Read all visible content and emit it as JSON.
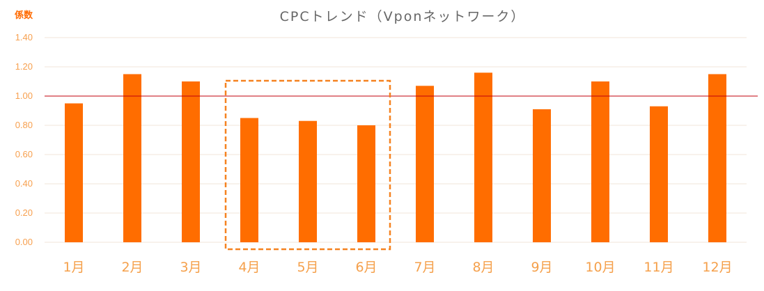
{
  "chart_data": {
    "type": "bar",
    "title": "CPCトレンド（Vponネットワーク）",
    "ylabel": "係数",
    "xlabel": "",
    "categories": [
      "1月",
      "2月",
      "3月",
      "4月",
      "5月",
      "6月",
      "7月",
      "8月",
      "9月",
      "10月",
      "11月",
      "12月"
    ],
    "values": [
      0.95,
      1.15,
      1.1,
      0.85,
      0.83,
      0.8,
      1.07,
      1.16,
      0.91,
      1.1,
      0.93,
      1.15
    ],
    "ylim": [
      0,
      1.4
    ],
    "yticks": [
      "0.00",
      "0.20",
      "0.40",
      "0.60",
      "0.80",
      "1.00",
      "1.20",
      "1.40"
    ],
    "reference_line": 1.0,
    "highlighted_categories": [
      "4月",
      "5月",
      "6月"
    ],
    "grid": true,
    "colors": {
      "bar": "#ff6d00",
      "reference_line": "#c0000b",
      "highlight_box": "#f58220",
      "tick_labels": "#f5a04b",
      "title": "#666666",
      "grid": "#f2e6da"
    }
  }
}
